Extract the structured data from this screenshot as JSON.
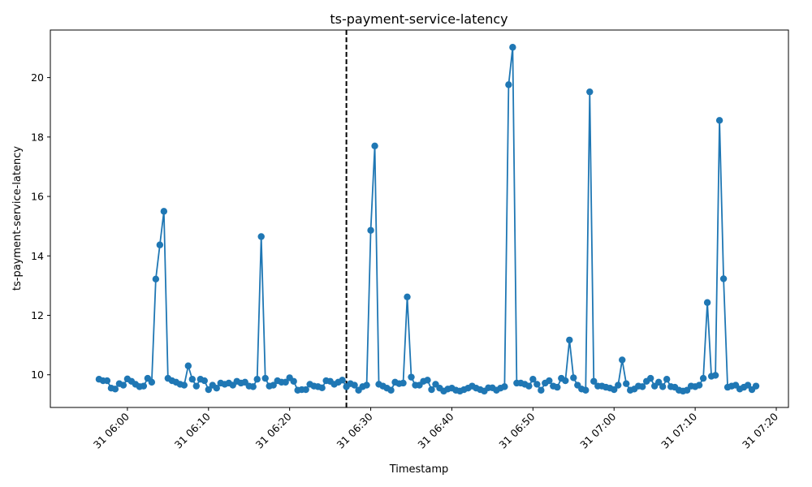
{
  "chart_data": {
    "type": "line",
    "title": "ts-payment-service-latency",
    "xlabel": "Timestamp",
    "ylabel": "ts-payment-service-latency",
    "xlim_minutes_after_0600": [
      -9.5,
      81.5
    ],
    "ylim": [
      8.9,
      21.6
    ],
    "x_ticks": [
      {
        "value": 0,
        "label": "31 06:00"
      },
      {
        "value": 10,
        "label": "31 06:10"
      },
      {
        "value": 20,
        "label": "31 06:20"
      },
      {
        "value": 30,
        "label": "31 06:30"
      },
      {
        "value": 40,
        "label": "31 06:40"
      },
      {
        "value": 50,
        "label": "31 06:50"
      },
      {
        "value": 60,
        "label": "31 07:00"
      },
      {
        "value": 70,
        "label": "31 07:10"
      },
      {
        "value": 80,
        "label": "31 07:20"
      }
    ],
    "y_ticks": [
      10,
      12,
      14,
      16,
      18,
      20
    ],
    "vline_minutes_after_0600": 27,
    "line_color": "#1f77b4",
    "vline_color": "#000000",
    "x_start_minutes_after_0600": -3.5,
    "x_step_minutes": 0.5,
    "series": [
      {
        "name": "",
        "values": [
          9.85,
          9.8,
          9.8,
          9.55,
          9.52,
          9.7,
          9.65,
          9.86,
          9.78,
          9.68,
          9.6,
          9.62,
          9.88,
          9.75,
          13.22,
          14.37,
          15.5,
          9.88,
          9.8,
          9.75,
          9.68,
          9.65,
          10.3,
          9.85,
          9.62,
          9.85,
          9.8,
          9.5,
          9.65,
          9.55,
          9.72,
          9.68,
          9.72,
          9.65,
          9.78,
          9.72,
          9.75,
          9.62,
          9.6,
          9.85,
          14.65,
          9.88,
          9.62,
          9.65,
          9.8,
          9.75,
          9.75,
          9.9,
          9.78,
          9.48,
          9.5,
          9.5,
          9.68,
          9.62,
          9.6,
          9.56,
          9.8,
          9.78,
          9.68,
          9.75,
          9.82,
          9.6,
          9.7,
          9.65,
          9.48,
          9.6,
          9.65,
          14.86,
          17.7,
          9.68,
          9.62,
          9.55,
          9.48,
          9.75,
          9.7,
          9.72,
          12.62,
          9.92,
          9.65,
          9.65,
          9.78,
          9.82,
          9.5,
          9.68,
          9.55,
          9.45,
          9.52,
          9.55,
          9.48,
          9.45,
          9.5,
          9.55,
          9.62,
          9.55,
          9.5,
          9.45,
          9.56,
          9.56,
          9.48,
          9.55,
          9.6,
          19.76,
          21.02,
          9.72,
          9.72,
          9.68,
          9.62,
          9.85,
          9.68,
          9.48,
          9.72,
          9.8,
          9.62,
          9.58,
          9.88,
          9.8,
          11.17,
          9.9,
          9.65,
          9.52,
          9.48,
          19.52,
          9.78,
          9.62,
          9.62,
          9.58,
          9.55,
          9.5,
          9.65,
          10.5,
          9.7,
          9.48,
          9.52,
          9.62,
          9.6,
          9.78,
          9.88,
          9.62,
          9.75,
          9.6,
          9.85,
          9.6,
          9.58,
          9.48,
          9.45,
          9.48,
          9.62,
          9.6,
          9.65,
          9.88,
          12.43,
          9.95,
          9.98,
          18.56,
          13.23,
          9.58,
          9.62,
          9.65,
          9.52,
          9.58,
          9.65,
          9.5,
          9.62
        ]
      }
    ]
  }
}
